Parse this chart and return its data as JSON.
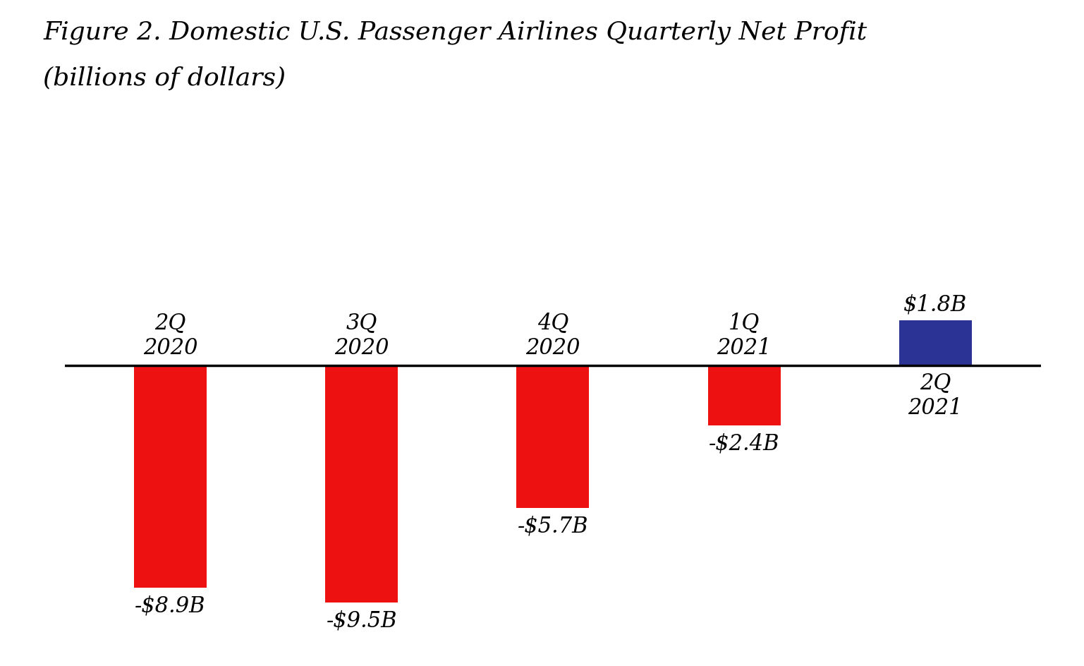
{
  "title_line1": "Figure 2. Domestic U.S. Passenger Airlines Quarterly Net Profit",
  "title_line2": "(billions of dollars)",
  "categories": [
    "2Q\n2020",
    "3Q\n2020",
    "4Q\n2020",
    "1Q\n2021",
    "2Q\n2021"
  ],
  "values": [
    -8.9,
    -9.5,
    -5.7,
    -2.4,
    1.8
  ],
  "labels": [
    "-$8.9B",
    "-$9.5B",
    "-$5.7B",
    "-$2.4B",
    "$1.8B"
  ],
  "bar_colors": [
    "#ee1111",
    "#ee1111",
    "#ee1111",
    "#ee1111",
    "#2b3494"
  ],
  "background_color": "#ffffff",
  "title_fontsize": 26,
  "label_fontsize": 22,
  "cat_fontsize": 22,
  "ylim": [
    -11.5,
    4.5
  ],
  "bar_width": 0.38
}
